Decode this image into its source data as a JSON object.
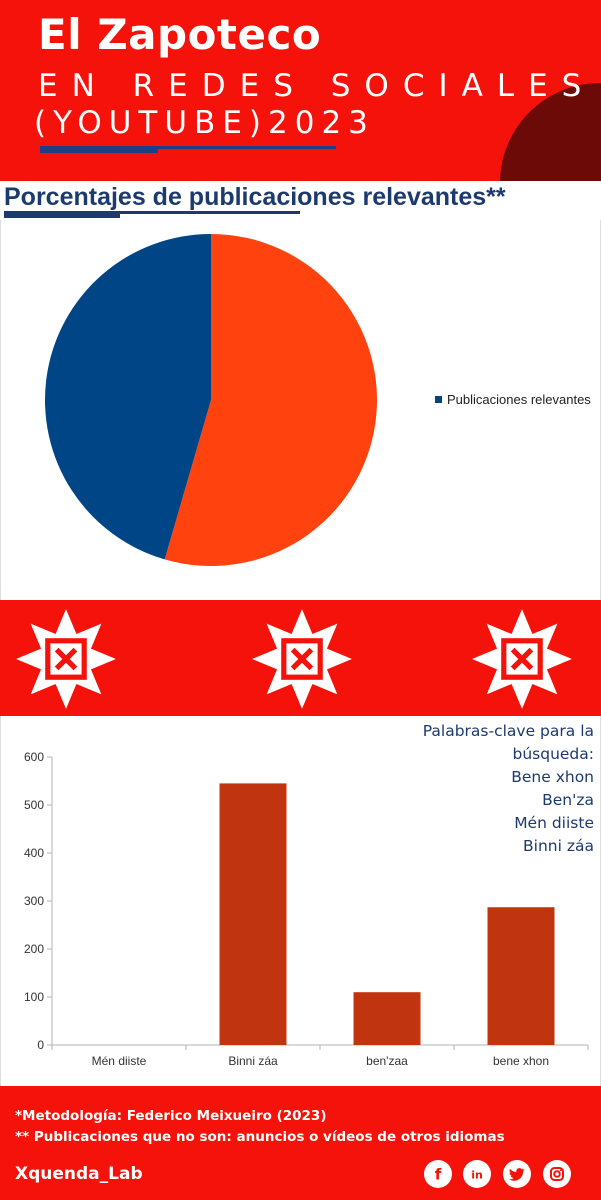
{
  "header": {
    "title": "El Zapoteco",
    "subtitle_line1": "EN REDES SOCIALES",
    "subtitle_line2": "(YOUTUBE)2023",
    "colors": {
      "background": "#f5120a",
      "accent_circle": "#6b0a06",
      "underline": "#1f3f85"
    }
  },
  "pie_section": {
    "heading": "Porcentajes de publicaciones relevantes**",
    "legend_label": "Publicaciones relevantes"
  },
  "keywords": {
    "heading_line1": "Palabras-clave para la",
    "heading_line2": "búsqueda:",
    "items": [
      "Bene xhon",
      "Ben'za",
      "Mén diiste",
      "Binni záa"
    ]
  },
  "decor_band": {
    "icon": "zapotec-star-icon",
    "count": 3
  },
  "chart_data": [
    {
      "type": "pie",
      "title": "",
      "series": [
        {
          "name": "Publicaciones relevantes",
          "color": "#004586"
        }
      ],
      "slices": [
        {
          "value": 54.5,
          "color": "#ff420e"
        },
        {
          "value": 45.5,
          "color": "#004586"
        }
      ],
      "legend": "right"
    },
    {
      "type": "bar",
      "title": "",
      "categories": [
        "Mén diiste",
        "Binni záa",
        "ben'zaa",
        "bene xhon"
      ],
      "values": [
        0,
        545,
        110,
        287
      ],
      "ylim": [
        0,
        600
      ],
      "yticks": [
        0,
        100,
        200,
        300,
        400,
        500,
        600
      ],
      "xlabel": "",
      "ylabel": "",
      "grid": false,
      "color": "#c0350f"
    }
  ],
  "footer": {
    "note1": "*Metodología: Federico Meixueiro (2023)",
    "note2": "** Publicaciones que no son: anuncios o vídeos de otros idiomas",
    "brand": "Xquenda_Lab",
    "social_icons": [
      "facebook-icon",
      "linkedin-icon",
      "twitter-icon",
      "instagram-icon"
    ],
    "social_glyphs": [
      "f",
      "in"
    ]
  }
}
